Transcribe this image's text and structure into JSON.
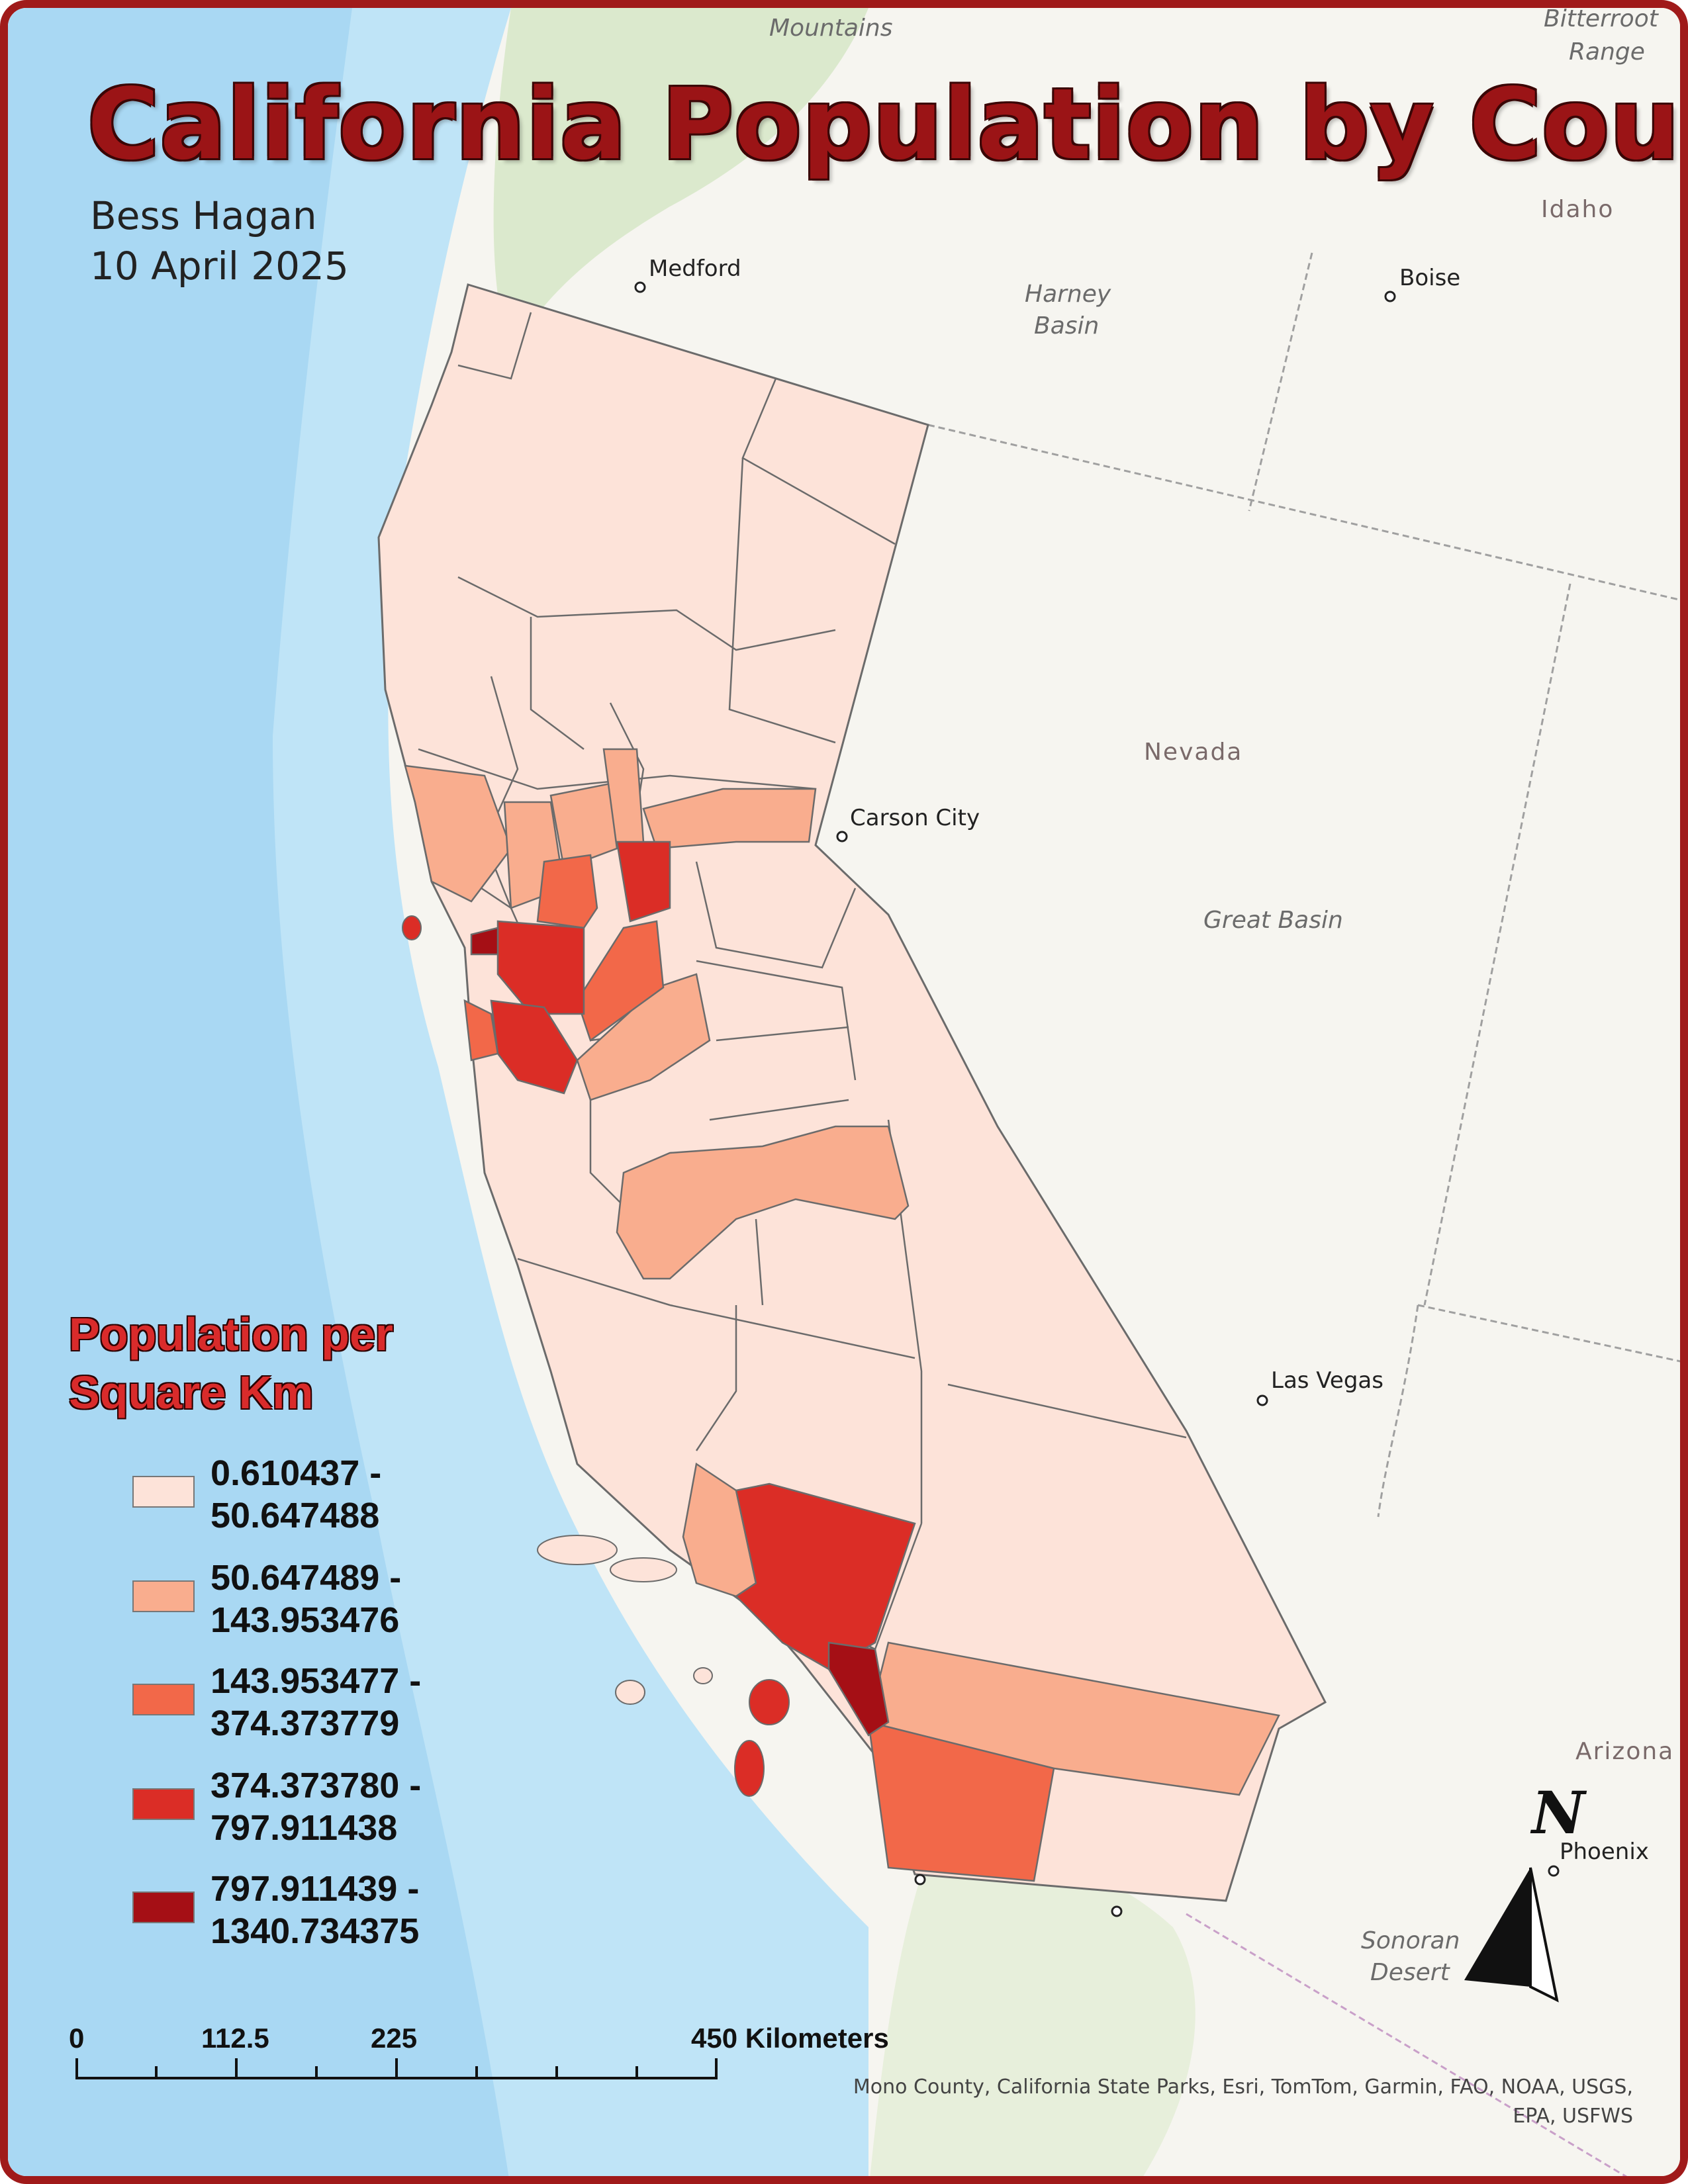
{
  "map": {
    "title": "California Population by County",
    "author": "Bess Hagan",
    "date": "10 April 2025",
    "legend": {
      "title_line1": "Population per",
      "title_line2": "Square Km",
      "classes": [
        {
          "min": "0.610437 -",
          "max": "50.647488",
          "color": "#fde3d9"
        },
        {
          "min": "50.647489 -",
          "max": "143.953476",
          "color": "#f9ad8e"
        },
        {
          "min": "143.953477 -",
          "max": "374.373779",
          "color": "#f26849"
        },
        {
          "min": "374.373780 -",
          "max": "797.911438",
          "color": "#db2d26"
        },
        {
          "min": "797.911439 -",
          "max": "1340.734375",
          "color": "#a50f15"
        }
      ]
    },
    "scale_bar": {
      "labels": [
        "0",
        "112.5",
        "225",
        "450 Kilometers"
      ]
    },
    "north_arrow": {
      "label": "N"
    },
    "cities": [
      "Medford",
      "Boise",
      "Carson City",
      "Las Vegas",
      "Phoenix"
    ],
    "regions": {
      "harney_1": "Harney",
      "harney_2": "Basin",
      "great_basin": "Great Basin",
      "sonoran_1": "Sonoran",
      "sonoran_2": "Desert",
      "blue_mtn_2": "Mountains",
      "bitterroot_1": "Bitterroot",
      "bitterroot_2": "Range"
    },
    "states": [
      "Nevada",
      "Idaho",
      "Arizona"
    ],
    "attribution_line1": "Mono County, California State Parks, Esri, TomTom, Garmin, FAO, NOAA, USGS,",
    "attribution_line2": "EPA, USFWS"
  }
}
